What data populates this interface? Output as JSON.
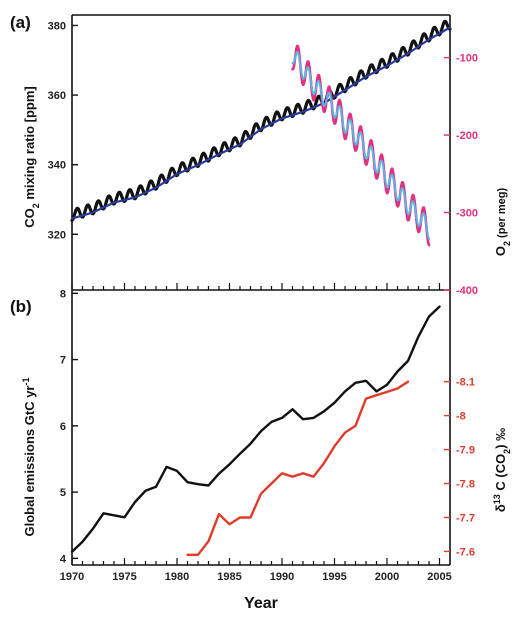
{
  "xlabel": "Year",
  "x_tick_labels": [
    "1970",
    "1975",
    "1980",
    "1985",
    "1990",
    "1995",
    "2000",
    "2005"
  ],
  "colors": {
    "co2_black": "#111111",
    "co2_blue": "#2a3a9c",
    "o2_magenta": "#e0327e",
    "o2_cyan": "#5ab4e6",
    "emissions_black": "#111111",
    "d13c_red": "#e03c2c",
    "axis_right_a": "#e0327e",
    "axis_right_b": "#e03c2c"
  },
  "chart_data": [
    {
      "type": "line",
      "panel_label": "(a)",
      "xlim": [
        1970,
        2006
      ],
      "ylabel_left": {
        "main": "CO",
        "sub": "2",
        "rest": " mixing ratio [ppm]"
      },
      "ylim_left": [
        304,
        383
      ],
      "yticks_left": [
        320,
        340,
        360,
        380
      ],
      "ylabel_right": {
        "main": "O",
        "sub": "2",
        "rest": " (per meg)"
      },
      "ylim_right": [
        -400,
        -45
      ],
      "yticks_right": [
        -100,
        -200,
        -300,
        -400
      ],
      "series": [
        {
          "axis": "left",
          "style": "seasonal-black",
          "x": [
            1970,
            1972,
            1974,
            1976,
            1978,
            1980,
            1982,
            1984,
            1986,
            1988,
            1990,
            1992,
            1994,
            1996,
            1998,
            2000,
            2002,
            2004,
            2006
          ],
          "values": [
            325.5,
            327.4,
            330.2,
            331.7,
            334.5,
            338.4,
            341.0,
            344.1,
            346.9,
            351.3,
            354.4,
            356.3,
            358.8,
            362.5,
            366.4,
            369.5,
            373.0,
            377.1,
            380.5
          ],
          "seasonal_amplitude": 3.0
        },
        {
          "axis": "left",
          "style": "trend-blue",
          "x": [
            1970,
            1972,
            1974,
            1976,
            1978,
            1980,
            1982,
            1984,
            1986,
            1988,
            1990,
            1992,
            1994,
            1996,
            1998,
            2000,
            2002,
            2004,
            2006
          ],
          "values": [
            324.5,
            326.3,
            329.1,
            330.6,
            333.4,
            337.3,
            339.9,
            343.0,
            345.8,
            350.2,
            353.3,
            355.2,
            357.7,
            361.4,
            365.3,
            368.4,
            371.9,
            376.0,
            379.4
          ]
        },
        {
          "axis": "right",
          "style": "seasonal-magenta",
          "x": [
            1991,
            1992,
            1993,
            1994,
            1995,
            1996,
            1997,
            1998,
            1999,
            2000,
            2001,
            2002,
            2003,
            2004
          ],
          "values": [
            -95,
            -115,
            -135,
            -150,
            -165,
            -185,
            -200,
            -218,
            -236,
            -255,
            -272,
            -290,
            -305,
            -322
          ],
          "seasonal_amplitude": 40
        },
        {
          "axis": "right",
          "style": "seasonal-cyan",
          "x": [
            1991,
            1992,
            1993,
            1994,
            1995,
            1996,
            1997,
            1998,
            1999,
            2000,
            2001,
            2002,
            2003,
            2004
          ],
          "values": [
            -95,
            -115,
            -135,
            -150,
            -165,
            -185,
            -200,
            -218,
            -236,
            -255,
            -272,
            -290,
            -305,
            -322
          ],
          "seasonal_amplitude": 24
        }
      ]
    },
    {
      "type": "line",
      "panel_label": "(b)",
      "xlim": [
        1970,
        2006
      ],
      "ylabel_left": {
        "main": "Global emissions GtC yr",
        "sup": "-1"
      },
      "ylim_left": [
        3.9,
        8.05
      ],
      "yticks_left": [
        4,
        5,
        6,
        7,
        8
      ],
      "ylabel_right": {
        "pre": "δ",
        "sup": "13",
        "mid": " C (CO",
        "sub": "2",
        "rest": ") ‰"
      },
      "ylim_right": [
        -7.56,
        -8.37
      ],
      "yticks_right": [
        -7.6,
        -7.7,
        -7.8,
        -7.9,
        -8.0,
        -8.1
      ],
      "series": [
        {
          "axis": "left",
          "style": "emissions-black",
          "x": [
            1970,
            1971,
            1972,
            1973,
            1974,
            1975,
            1976,
            1977,
            1978,
            1979,
            1980,
            1981,
            1982,
            1983,
            1984,
            1985,
            1986,
            1987,
            1988,
            1989,
            1990,
            1991,
            1992,
            1993,
            1994,
            1995,
            1996,
            1997,
            1998,
            1999,
            2000,
            2001,
            2002,
            2003,
            2004,
            2005
          ],
          "values": [
            4.1,
            4.25,
            4.45,
            4.68,
            4.65,
            4.62,
            4.85,
            5.02,
            5.08,
            5.38,
            5.32,
            5.15,
            5.12,
            5.1,
            5.28,
            5.42,
            5.58,
            5.73,
            5.92,
            6.06,
            6.12,
            6.25,
            6.1,
            6.12,
            6.22,
            6.35,
            6.52,
            6.65,
            6.68,
            6.52,
            6.62,
            6.82,
            6.98,
            7.35,
            7.65,
            7.8
          ]
        },
        {
          "axis": "right",
          "style": "d13c-red",
          "x": [
            1981,
            1982,
            1983,
            1984,
            1985,
            1986,
            1987,
            1988,
            1989,
            1990,
            1991,
            1992,
            1993,
            1994,
            1995,
            1996,
            1997,
            1998,
            1999,
            2000,
            2001,
            2002
          ],
          "values": [
            -7.59,
            -7.59,
            -7.63,
            -7.71,
            -7.68,
            -7.7,
            -7.7,
            -7.77,
            -7.8,
            -7.83,
            -7.82,
            -7.83,
            -7.82,
            -7.86,
            -7.91,
            -7.95,
            -7.97,
            -8.05,
            -8.06,
            -8.07,
            -8.08,
            -8.1
          ]
        }
      ]
    }
  ]
}
